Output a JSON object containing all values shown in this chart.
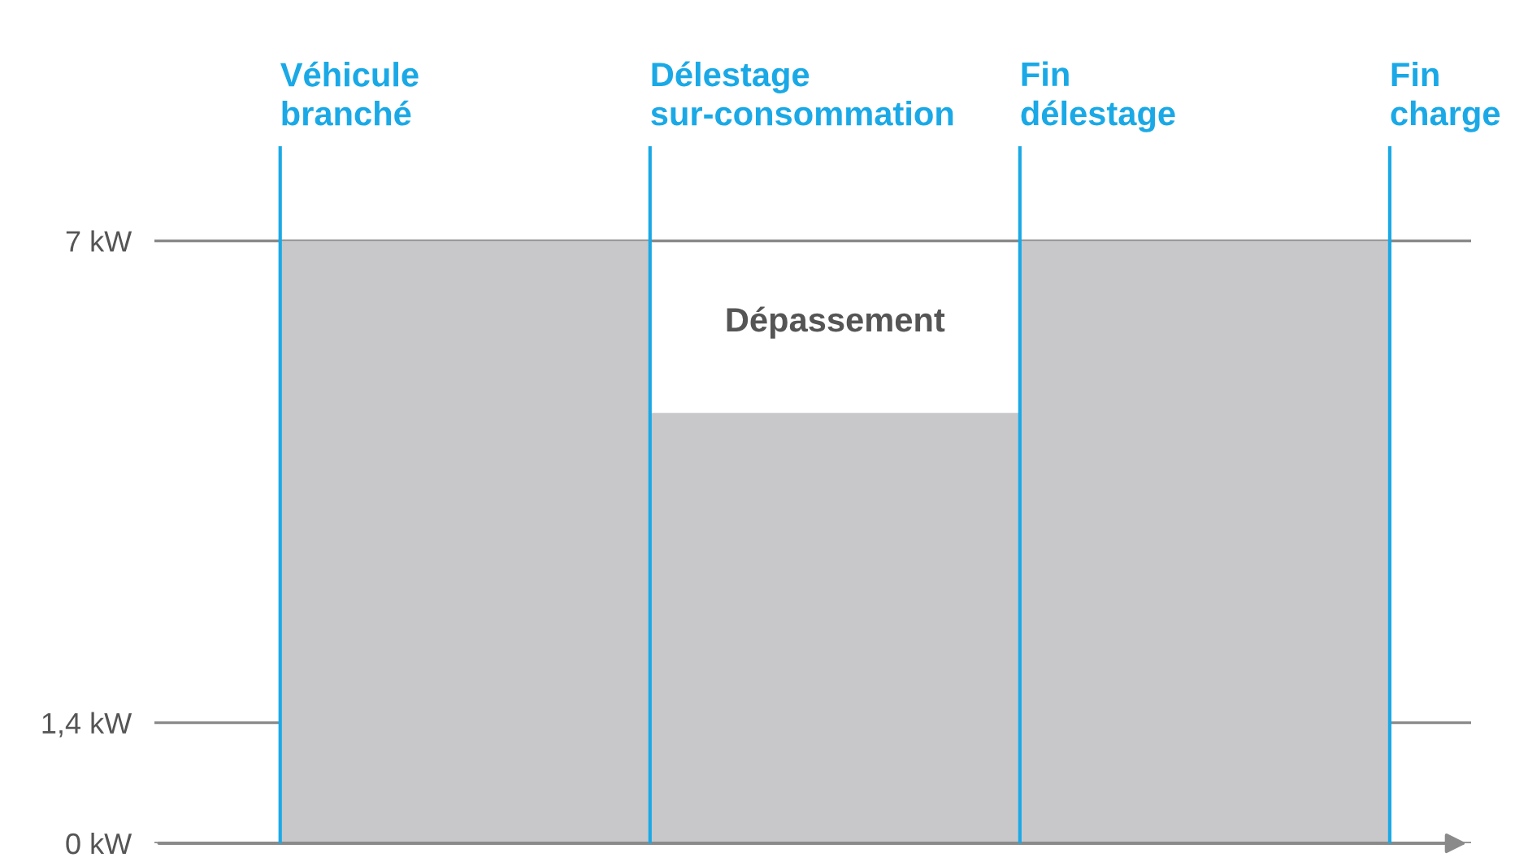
{
  "chart_data": {
    "type": "bar",
    "categories": [
      null,
      null,
      null
    ],
    "values": [
      7,
      5,
      7
    ],
    "color": "#c8c8ca",
    "ylim": [
      0,
      8.1
    ],
    "yticks": [
      {
        "value": 0,
        "label": "0 kW"
      },
      {
        "value": 1.4,
        "label": "1,4 kW"
      },
      {
        "value": 7,
        "label": "7 kW"
      }
    ],
    "grid": "y",
    "ref_lines": [
      {
        "axis": "x",
        "label": "Véhicule\nbranché",
        "color": "#1aa9e6"
      },
      {
        "axis": "x",
        "label": "Délestage\nsur-consommation",
        "color": "#1aa9e6"
      },
      {
        "axis": "x",
        "label": "Fin\ndélestage",
        "color": "#1aa9e6"
      },
      {
        "axis": "x",
        "label": "Fin\ncharge",
        "color": "#1aa9e6"
      }
    ],
    "annotations": [
      "Dépassement"
    ]
  }
}
